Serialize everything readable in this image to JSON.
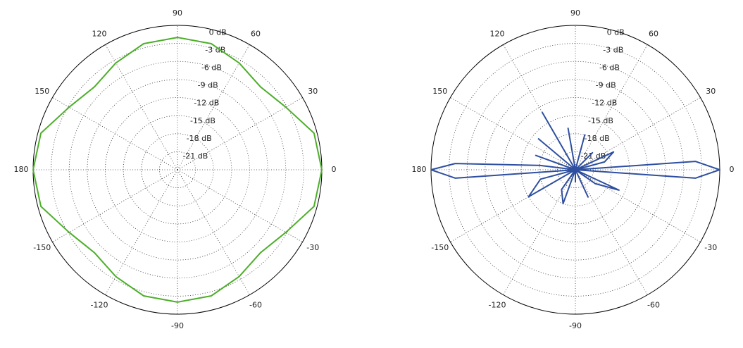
{
  "chart_data": [
    {
      "type": "polar",
      "color": "#4daf2a",
      "theta": [
        -180,
        -165,
        -150,
        -135,
        -120,
        -105,
        -90,
        -75,
        -60,
        -45,
        -30,
        -15,
        0,
        15,
        30,
        45,
        60,
        75,
        90,
        105,
        120,
        135,
        150,
        165,
        180
      ],
      "values": [
        0,
        -0.5,
        -3.2,
        -4.5,
        -3.5,
        -2.3,
        -2,
        -2.3,
        -3.5,
        -4.5,
        -3.2,
        -0.5,
        0,
        -0.5,
        -3.2,
        -4.5,
        -3.5,
        -2.3,
        -2,
        -2.3,
        -3.5,
        -4.5,
        -3.2,
        -0.5,
        0
      ],
      "rlim": [
        -24,
        0
      ],
      "rticks": [
        {
          "value": 0,
          "label": "0 dB"
        },
        {
          "value": -3,
          "label": "-3 dB"
        },
        {
          "value": -6,
          "label": "-6 dB"
        },
        {
          "value": -9,
          "label": "-9 dB"
        },
        {
          "value": -12,
          "label": "-12 dB"
        },
        {
          "value": -15,
          "label": "-15 dB"
        },
        {
          "value": -18,
          "label": "-18 dB"
        },
        {
          "value": -21,
          "label": "-21 dB"
        }
      ],
      "thetaticks": [
        0,
        30,
        60,
        90,
        120,
        150,
        180,
        -150,
        -120,
        -90,
        -60,
        -30
      ]
    },
    {
      "type": "polar",
      "color": "#2e4fa0",
      "theta": [
        -180,
        -176,
        -172,
        -165,
        -150,
        -140,
        -125,
        -110,
        -100,
        -90,
        -80,
        -65,
        -50,
        -35,
        -25,
        -15,
        -8,
        -4,
        0,
        4,
        8,
        15,
        25,
        35,
        45,
        60,
        75,
        85,
        100,
        110,
        120,
        128,
        140,
        150,
        160,
        168,
        173,
        177,
        180
      ],
      "values": [
        0,
        -4,
        -24,
        -18,
        -15,
        -24,
        -20,
        -18,
        -24,
        -22,
        -24,
        -19,
        -24,
        -20,
        -16,
        -24,
        -24,
        -4,
        0,
        -4,
        -24,
        -19,
        -17,
        -24,
        -20,
        -24,
        -18,
        -24,
        -17,
        -24,
        -13,
        -24,
        -16,
        -24,
        -17,
        -24,
        -18,
        -4,
        0
      ],
      "rlim": [
        -24,
        0
      ],
      "rticks": [
        {
          "value": 0,
          "label": "0 dB"
        },
        {
          "value": -3,
          "label": "-3 dB"
        },
        {
          "value": -6,
          "label": "-6 dB"
        },
        {
          "value": -9,
          "label": "-9 dB"
        },
        {
          "value": -12,
          "label": "-12 dB"
        },
        {
          "value": -15,
          "label": "-15 dB"
        },
        {
          "value": -18,
          "label": "-18 dB"
        },
        {
          "value": -21,
          "label": "-21 dB"
        }
      ],
      "thetaticks": [
        0,
        30,
        60,
        90,
        120,
        150,
        180,
        -150,
        -120,
        -90,
        -60,
        -30
      ]
    }
  ]
}
